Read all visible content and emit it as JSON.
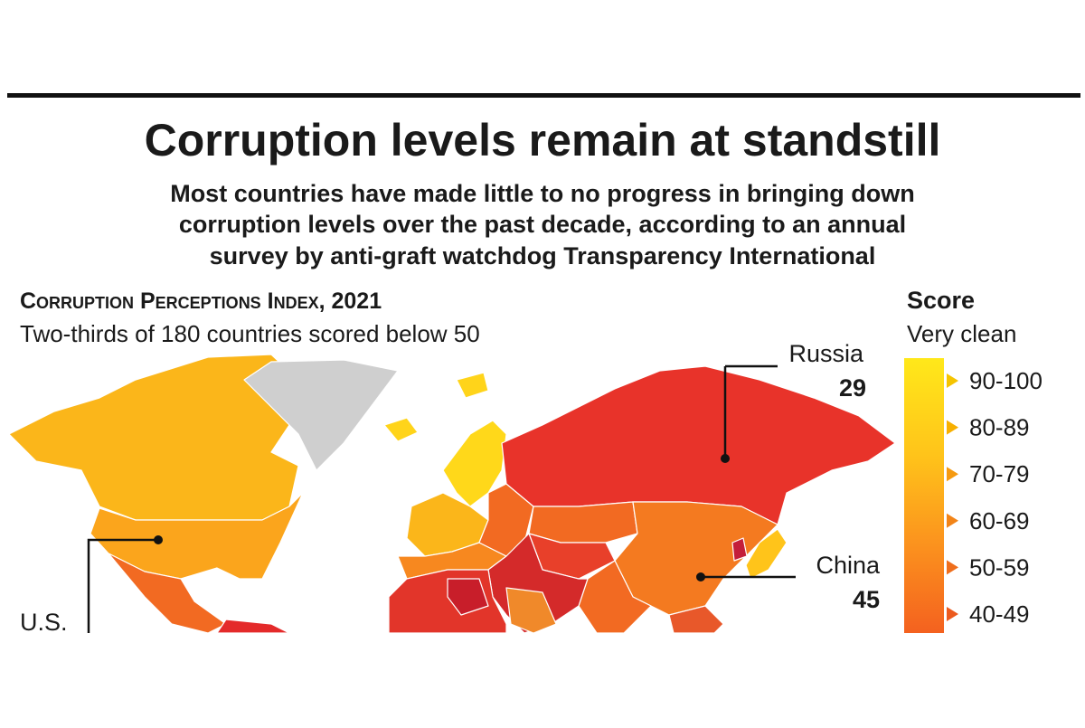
{
  "header": {
    "title": "Corruption levels remain at standstill",
    "subtitle_lines": [
      "Most countries have made little to no progress in bringing down",
      "corruption levels over the past decade, according to an annual",
      "survey by anti-graft watchdog Transparency International"
    ]
  },
  "index": {
    "title": "Corruption Perceptions Index, 2021",
    "subtitle": "Two-thirds of 180 countries scored below 50"
  },
  "callouts": [
    {
      "label": "Russia",
      "score": 29
    },
    {
      "label": "China",
      "score": 45
    },
    {
      "label": "U.S."
    }
  ],
  "legend": {
    "title": "Score",
    "subtitle": "Very clean",
    "items": [
      "90-100",
      "80-89",
      "70-79",
      "60-69",
      "50-59",
      "40-49"
    ]
  }
}
